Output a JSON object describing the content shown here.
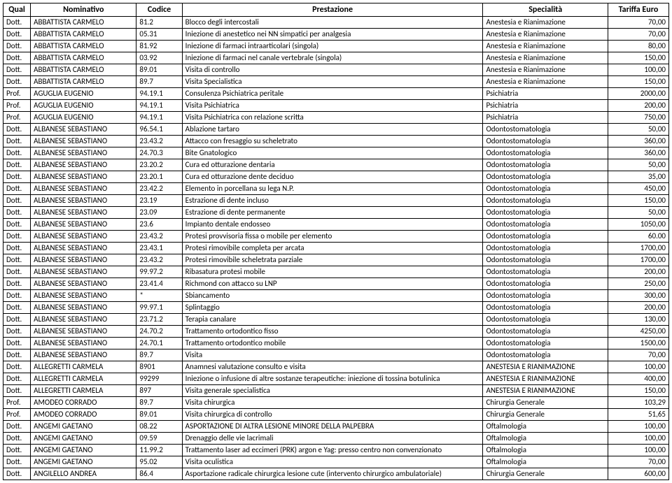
{
  "columns": [
    "Qual",
    "Nominativo",
    "Codice",
    "Prestazione",
    "Specialità",
    "Tariffa Euro"
  ],
  "rows": [
    [
      "Dott.",
      "ABBATTISTA CARMELO",
      "81.2",
      "Blocco degli intercostali",
      "Anestesia e Rianimazione",
      "70,00"
    ],
    [
      "Dott.",
      "ABBATTISTA CARMELO",
      "05.31",
      "Iniezione di anestetico nei NN simpatici per analgesia",
      "Anestesia e Rianimazione",
      "70,00"
    ],
    [
      "Dott.",
      "ABBATTISTA CARMELO",
      "81.92",
      "Iniezione di farmaci intraarticolari (singola)",
      "Anestesia e Rianimazione",
      "80,00"
    ],
    [
      "Dott.",
      "ABBATTISTA CARMELO",
      "03.92",
      "Iniezione di farmaci nel canale vertebrale (singola)",
      "Anestesia e Rianimazione",
      "150,00"
    ],
    [
      "Dott.",
      "ABBATTISTA CARMELO",
      "89.01",
      "Visita di controllo",
      "Anestesia e Rianimazione",
      "100,00"
    ],
    [
      "Dott.",
      "ABBATTISTA CARMELO",
      "89.7",
      "Visita Specialistica",
      "Anestesia e Rianimazione",
      "150,00"
    ],
    [
      "Prof.",
      "AGUGLIA EUGENIO",
      "94.19.1",
      "Consulenza Psichiatrica peritale",
      "Psichiatria",
      "2000,00"
    ],
    [
      "Prof.",
      "AGUGLIA EUGENIO",
      "94.19.1",
      "Visita Psichiatrica",
      "Psichiatria",
      "200,00"
    ],
    [
      "Prof.",
      "AGUGLIA EUGENIO",
      "94.19.1",
      "Visita Psichiatrica con relazione scritta",
      "Psichiatria",
      "750,00"
    ],
    [
      "Dott.",
      "ALBANESE SEBASTIANO",
      "96.54.1",
      "Ablazione tartaro",
      "Odontostomatologia",
      "50,00"
    ],
    [
      "Dott.",
      "ALBANESE SEBASTIANO",
      "23.43.2",
      "Attacco con fresaggio su scheletrato",
      "Odontostomatologia",
      "360,00"
    ],
    [
      "Dott.",
      "ALBANESE SEBASTIANO",
      "24.70.3",
      "Bite Gnatologico",
      "Odontostomatologia",
      "360,00"
    ],
    [
      "Dott.",
      "ALBANESE SEBASTIANO",
      "23.20.2",
      "Cura ed otturazione dentaria",
      "Odontostomatologia",
      "50,00"
    ],
    [
      "Dott.",
      "ALBANESE SEBASTIANO",
      "23.20.1",
      "Cura ed otturazione dente deciduo",
      "Odontostomatologia",
      "35,00"
    ],
    [
      "Dott.",
      "ALBANESE SEBASTIANO",
      "23.42.2",
      "Elemento in porcellana su lega N.P.",
      "Odontostomatologia",
      "450,00"
    ],
    [
      "Dott.",
      "ALBANESE SEBASTIANO",
      "23.19",
      "Estrazione di dente incluso",
      "Odontostomatologia",
      "150,00"
    ],
    [
      "Dott.",
      "ALBANESE SEBASTIANO",
      "23.09",
      "Estrazione di dente permanente",
      "Odontostomatologia",
      "50,00"
    ],
    [
      "Dott.",
      "ALBANESE SEBASTIANO",
      "23.6",
      "Impianto dentale endosseo",
      "Odontostomatologia",
      "1050,00"
    ],
    [
      "Dott.",
      "ALBANESE SEBASTIANO",
      "23.43.2",
      "Protesi provvisoria fissa o mobile per elemento",
      "Odontostomatologia",
      "60.00"
    ],
    [
      "Dott.",
      "ALBANESE SEBASTIANO",
      "23.43.1",
      "Protesi rimovibile completa per arcata",
      "Odontostomatologia",
      "1700,00"
    ],
    [
      "Dott.",
      "ALBANESE SEBASTIANO",
      "23.43.2",
      "Protesi rimovibile scheletrata parziale",
      "Odontostomatologia",
      "1700,00"
    ],
    [
      "Dott.",
      "ALBANESE SEBASTIANO",
      "99.97.2",
      "Ribasatura protesi mobile",
      "Odontostomatologia",
      "200,00"
    ],
    [
      "Dott.",
      "ALBANESE SEBASTIANO",
      "23.41.4",
      "Richmond con attacco su LNP",
      "Odontostomatologia",
      "250,00"
    ],
    [
      "Dott.",
      "ALBANESE SEBASTIANO",
      "*",
      "Sbiancamento",
      "Odontostomatologia",
      "300,00"
    ],
    [
      "Dott.",
      "ALBANESE SEBASTIANO",
      "99.97.1",
      "Splintaggio",
      "Odontostomatologia",
      "200,00"
    ],
    [
      "Dott.",
      "ALBANESE SEBASTIANO",
      "23.71.2",
      "Terapia canalare",
      "Odontostomatologia",
      "130,00"
    ],
    [
      "Dott.",
      "ALBANESE SEBASTIANO",
      "24.70.2",
      "Trattamento ortodontico fisso",
      "Odontostomatologia",
      "4250,00"
    ],
    [
      "Dott.",
      "ALBANESE SEBASTIANO",
      "24.70.1",
      "Trattamento ortodontico mobile",
      "Odontostomatologia",
      "1500,00"
    ],
    [
      "Dott.",
      "ALBANESE SEBASTIANO",
      "89.7",
      "Visita",
      "Odontostomatologia",
      "70,00"
    ],
    [
      "Dott.",
      "ALLEGRETTI CARMELA",
      "8901",
      "Anamnesi valutazione consulto e visita",
      "ANESTESIA E RIANIMAZIONE",
      "100,00"
    ],
    [
      "Dott.",
      "ALLEGRETTI CARMELA",
      "99299",
      "Iniezione o infusione di altre sostanze terapeutiche: iniezione di tossina botulinica",
      "ANESTESIA E RIANIMAZIONE",
      "400,00"
    ],
    [
      "Dott.",
      "ALLEGRETTI CARMELA",
      "897",
      "Visita generale specialistica",
      "ANESTESIA E RIANIMAZIONE",
      "150,00"
    ],
    [
      "Prof.",
      "AMODEO CORRADO",
      "89.7",
      "Visita chirurgica",
      "Chirurgia Generale",
      "103,29"
    ],
    [
      "Prof.",
      "AMODEO CORRADO",
      "89.01",
      "Visita chirurgica di controllo",
      "Chirurgia Generale",
      "51,65"
    ],
    [
      "Dott.",
      "ANGEMI GAETANO",
      "08.22",
      "ASPORTAZIONE DI ALTRA LESIONE MINORE DELLA PALPEBRA",
      "Oftalmologia",
      "100,00"
    ],
    [
      "Dott.",
      "ANGEMI GAETANO",
      "09.59",
      "Drenaggio delle vie lacrimali",
      "Oftalmologia",
      "100,00"
    ],
    [
      "Dott.",
      "ANGEMI GAETANO",
      "11.99.2",
      "Trattamento laser ad eccimeri (PRK) argon e Yag: presso centro non convenzionato",
      "Oftalmologia",
      "100,00"
    ],
    [
      "Dott.",
      "ANGEMI GAETANO",
      "95.02",
      "Visita oculistica",
      "Oftalmologia",
      "70,00"
    ],
    [
      "Dott.",
      "ANGILELLO ANDREA",
      "86.4",
      "Asportazione radicale chirurgica lesione cute (intervento chirurgico ambulatoriale)",
      "Chirurgia Generale",
      "600,00"
    ]
  ]
}
